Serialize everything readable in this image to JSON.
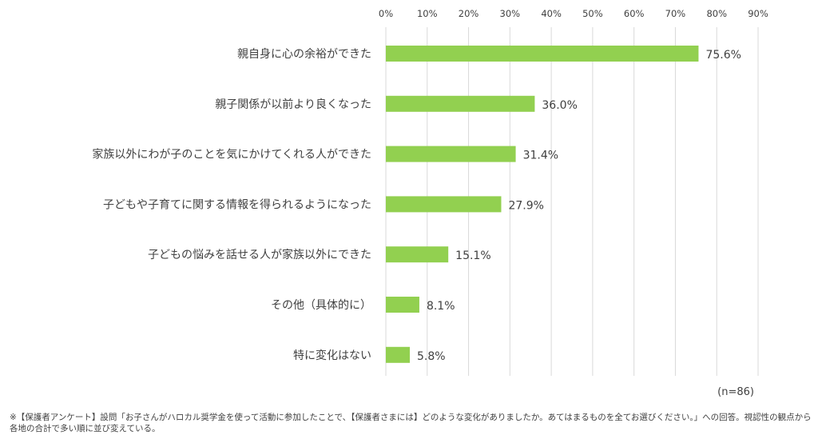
{
  "chart_data": {
    "type": "bar",
    "orientation": "horizontal",
    "categories": [
      "親自身に心の余裕ができた",
      "親子関係が以前より良くなった",
      "家族以外にわが子のことを気にかけてくれる人ができた",
      "子どもや子育てに関する情報を得られるようになった",
      "子どもの悩みを話せる人が家族以外にできた",
      "その他（具体的に）",
      "特に変化はない"
    ],
    "values": [
      75.6,
      36.0,
      31.4,
      27.9,
      15.1,
      8.1,
      5.8
    ],
    "value_labels": [
      "75.6%",
      "36.0%",
      "31.4%",
      "27.9%",
      "15.1%",
      "8.1%",
      "5.8%"
    ],
    "xlim": [
      0,
      90
    ],
    "x_ticks": [
      0,
      10,
      20,
      30,
      40,
      50,
      60,
      70,
      80,
      90
    ],
    "x_tick_labels": [
      "0%",
      "10%",
      "20%",
      "30%",
      "40%",
      "50%",
      "60%",
      "70%",
      "80%",
      "90%"
    ],
    "x_axis_position": "top",
    "grid": true,
    "bar_color": "#92d050",
    "grid_color": "#d9d9d9",
    "sample_note": "(n=86)"
  },
  "footnote": "※【保護者アンケート】設問「お子さんがハロカル奨学金を使って活動に参加したことで、【保護者さまには】どのような変化がありましたか。あてはまるものを全てお選びください。」への回答。視認性の観点から各地の合計で多い順に並び変えている。"
}
